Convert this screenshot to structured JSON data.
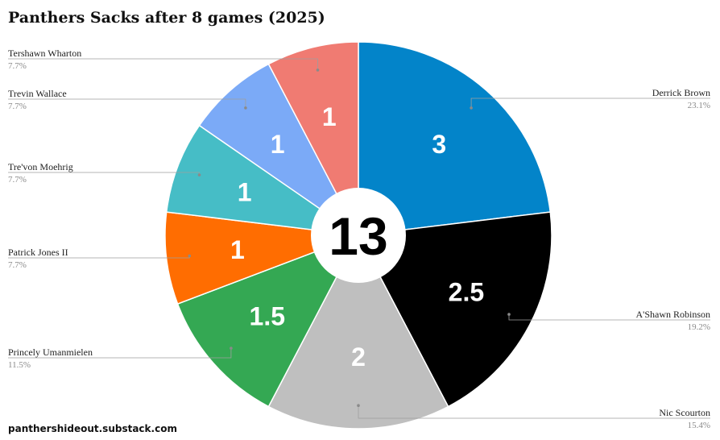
{
  "chart_data": {
    "type": "pie",
    "title": "Panthers Sacks after 8 games (2025)",
    "center_total": "13",
    "slices": [
      {
        "name": "Derrick Brown",
        "value": 3,
        "value_label": "3",
        "percent": "23.1%",
        "color": "#0384c9",
        "text_color": "#ffffff",
        "side": "right"
      },
      {
        "name": "A'Shawn Robinson",
        "value": 2.5,
        "value_label": "2.5",
        "percent": "19.2%",
        "color": "#000000",
        "text_color": "#ffffff",
        "side": "right"
      },
      {
        "name": "Nic Scourton",
        "value": 2,
        "value_label": "2",
        "percent": "15.4%",
        "color": "#bfbfbf",
        "text_color": "#ffffff",
        "side": "right"
      },
      {
        "name": "Princely Umanmielen",
        "value": 1.5,
        "value_label": "1.5",
        "percent": "11.5%",
        "color": "#34a853",
        "text_color": "#ffffff",
        "side": "left"
      },
      {
        "name": "Patrick Jones II",
        "value": 1,
        "value_label": "1",
        "percent": "7.7%",
        "color": "#ff6d01",
        "text_color": "#ffffff",
        "side": "left"
      },
      {
        "name": "Tre'von Moehrig",
        "value": 1,
        "value_label": "1",
        "percent": "7.7%",
        "color": "#46bdc6",
        "text_color": "#ffffff",
        "side": "left"
      },
      {
        "name": "Trevin Wallace",
        "value": 1,
        "value_label": "1",
        "percent": "7.7%",
        "color": "#7baaf7",
        "text_color": "#ffffff",
        "side": "left"
      },
      {
        "name": "Tershawn Wharton",
        "value": 1,
        "value_label": "1",
        "percent": "7.7%",
        "color": "#f07b72",
        "text_color": "#ffffff",
        "side": "left"
      }
    ],
    "legend": "none",
    "label_placement": "outside with leader lines"
  },
  "footer": "panthershideout.substack.com"
}
